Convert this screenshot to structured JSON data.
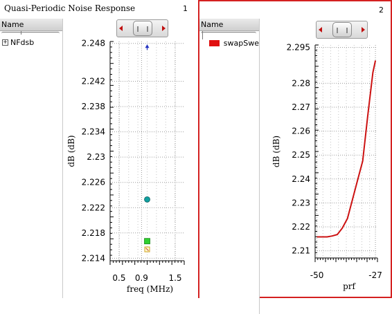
{
  "panels": [
    {
      "title": "Quasi-Periodic Noise Response",
      "number": "1",
      "tree_header": "Name",
      "tree_items": [
        {
          "expander": "+",
          "label": "NFdsb"
        }
      ]
    },
    {
      "title": "",
      "number": "2",
      "tree_header": "Name",
      "legend_items": [
        {
          "label": "swapSwe",
          "color": "#e01010"
        }
      ]
    }
  ],
  "colors": {
    "selected_border": "#d42020",
    "line": "#cc1111"
  },
  "chart_data": [
    {
      "type": "scatter",
      "title": "",
      "xlabel": "freq (MHz)",
      "ylabel": "dB (dB)",
      "xlim": [
        0.34,
        1.66
      ],
      "ylim": [
        2.2136,
        2.2483
      ],
      "x_ticks": [
        "0.5",
        "0.9",
        "1.5"
      ],
      "x_tick_values": [
        0.5,
        0.9,
        1.5
      ],
      "y_ticks": [
        "2.214",
        "2.218",
        "2.222",
        "2.226",
        "2.23",
        "2.234",
        "2.238",
        "2.242",
        "2.248"
      ],
      "y_tick_values": [
        2.214,
        2.218,
        2.222,
        2.226,
        2.23,
        2.234,
        2.238,
        2.242,
        2.248
      ],
      "grid": true,
      "points": [
        {
          "x": 1.0,
          "y": 2.2474,
          "marker": "arrow-up",
          "color": "#2030c0"
        },
        {
          "x": 1.0,
          "y": 2.2233,
          "marker": "circle",
          "color": "#11a0a0"
        },
        {
          "x": 1.0,
          "y": 2.2167,
          "marker": "square",
          "color": "#30d030"
        },
        {
          "x": 1.0,
          "y": 2.2154,
          "marker": "open-square",
          "color": "#d0a020"
        }
      ]
    },
    {
      "type": "line",
      "title": "",
      "xlabel": "prf",
      "ylabel": "dB (dB)",
      "xlim": [
        -50.7,
        -26.2
      ],
      "ylim": [
        2.207,
        2.296
      ],
      "x_ticks": [
        "-50",
        "-27"
      ],
      "x_tick_values": [
        -50,
        -27
      ],
      "y_ticks": [
        "2.21",
        "2.22",
        "2.23",
        "2.24",
        "2.25",
        "2.26",
        "2.27",
        "2.28",
        "2.295"
      ],
      "y_tick_values": [
        2.21,
        2.22,
        2.23,
        2.24,
        2.25,
        2.26,
        2.27,
        2.28,
        2.295
      ],
      "grid": true,
      "series": [
        {
          "name": "swapSwe",
          "color": "#cc1111",
          "x": [
            -50,
            -48,
            -46,
            -44,
            -42,
            -40,
            -38,
            -36,
            -34,
            -32,
            -30,
            -28,
            -27
          ],
          "y": [
            2.2158,
            2.2158,
            2.2158,
            2.2162,
            2.2168,
            2.2195,
            2.2235,
            2.2315,
            2.2395,
            2.2475,
            2.2665,
            2.2845,
            2.2895
          ]
        }
      ]
    }
  ]
}
